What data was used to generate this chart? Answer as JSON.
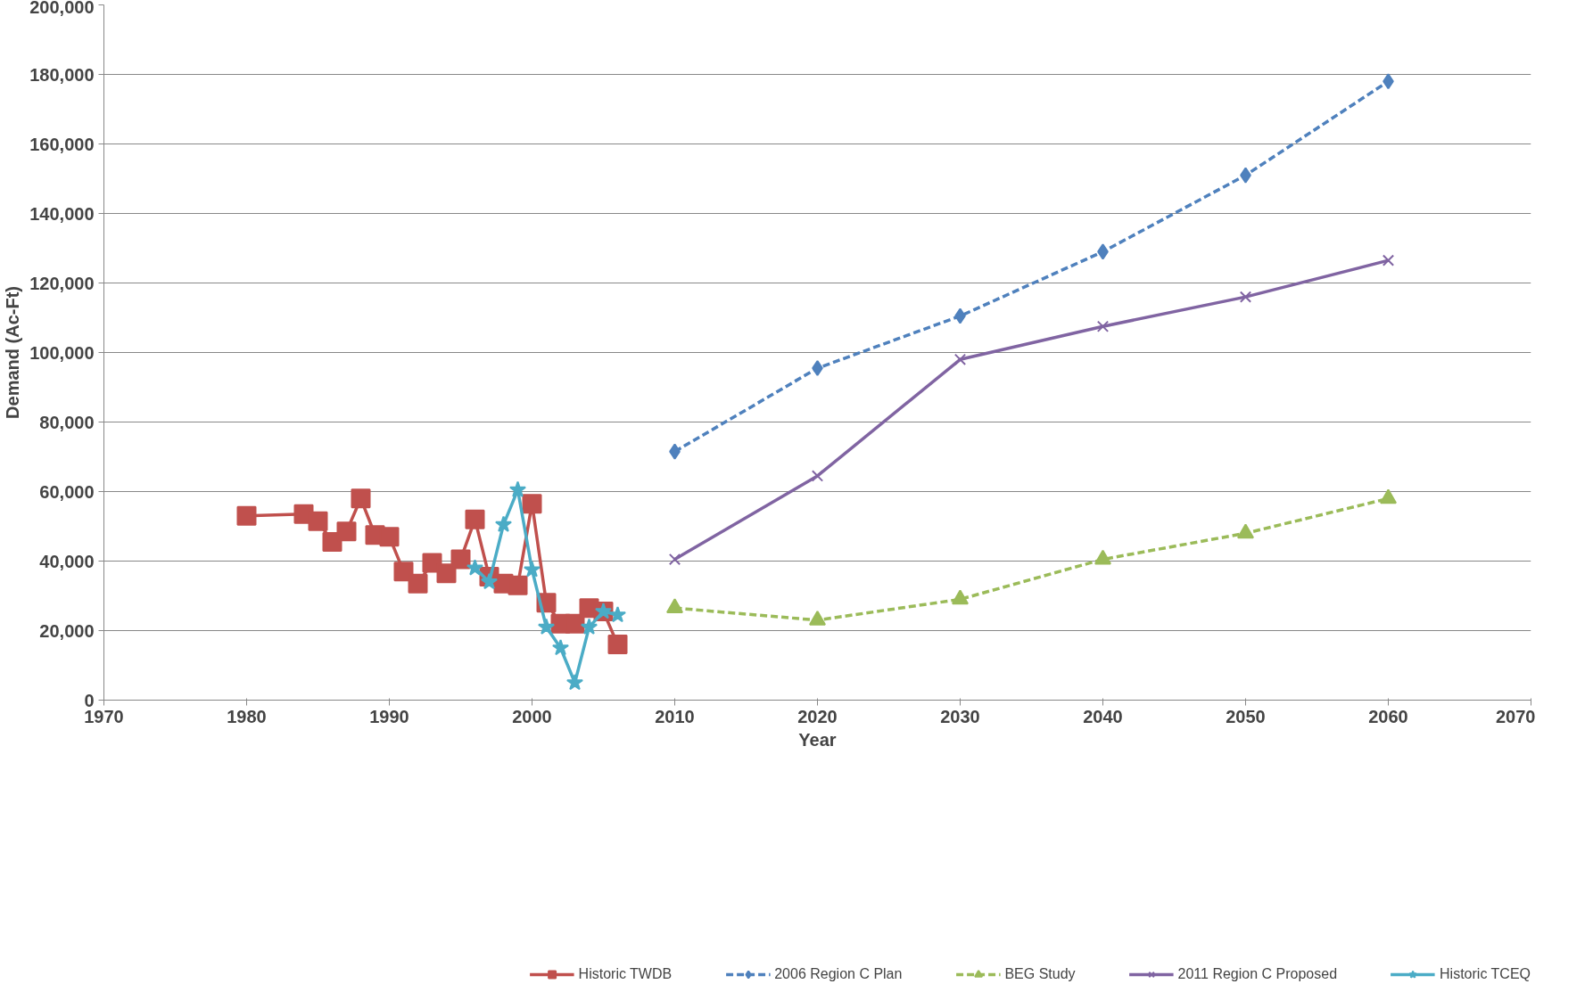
{
  "chart_data": {
    "type": "line",
    "xlabel": "Year",
    "ylabel": "Demand (Ac-Ft)",
    "xlim": [
      1970,
      2070
    ],
    "xticks": [
      1970,
      1980,
      1990,
      2000,
      2010,
      2020,
      2030,
      2040,
      2050,
      2060,
      2070
    ],
    "ylim": [
      0,
      200000
    ],
    "yticks": [
      {
        "value": 0,
        "label": "0"
      },
      {
        "value": 20000,
        "label": "20,000"
      },
      {
        "value": 40000,
        "label": "40,000"
      },
      {
        "value": 60000,
        "label": "60,000"
      },
      {
        "value": 80000,
        "label": "80,000"
      },
      {
        "value": 100000,
        "label": "100,000"
      },
      {
        "value": 120000,
        "label": "120,000"
      },
      {
        "value": 140000,
        "label": "140,000"
      },
      {
        "value": 160000,
        "label": "160,000"
      },
      {
        "value": 180000,
        "label": "180,000"
      },
      {
        "value": 200000,
        "label": "200,000"
      }
    ],
    "grid": "y",
    "legend": "bottom",
    "series": [
      {
        "name": "Historic TWDB",
        "color": "#c0504d",
        "marker": "square",
        "line_style": "solid",
        "x": [
          1980,
          1984,
          1985,
          1986,
          1987,
          1988,
          1989,
          1990,
          1991,
          1992,
          1993,
          1994,
          1995,
          1996,
          1997,
          1998,
          1999,
          2000,
          2001,
          2002,
          2003,
          2004,
          2005,
          2006
        ],
        "values": [
          53000,
          53500,
          51500,
          45500,
          48500,
          58000,
          47500,
          47000,
          37000,
          33500,
          39500,
          36500,
          40500,
          52000,
          35500,
          33500,
          33000,
          56500,
          28000,
          22000,
          22000,
          26500,
          25500,
          16000
        ]
      },
      {
        "name": "2006 Region C Plan",
        "color": "#4f81bd",
        "marker": "diamond",
        "line_style": "dashed",
        "x": [
          2010,
          2020,
          2030,
          2040,
          2050,
          2060
        ],
        "values": [
          71500,
          95500,
          110500,
          129000,
          151000,
          178000
        ]
      },
      {
        "name": "BEG Study",
        "color": "#9bbb59",
        "marker": "triangle",
        "line_style": "dashed",
        "x": [
          2010,
          2020,
          2030,
          2040,
          2050,
          2060
        ],
        "values": [
          26500,
          23000,
          29000,
          40500,
          48000,
          58000
        ]
      },
      {
        "name": "2011 Region C Proposed",
        "color": "#8064a2",
        "marker": "cross",
        "line_style": "solid",
        "x": [
          2010,
          2020,
          2030,
          2040,
          2050,
          2060
        ],
        "values": [
          40500,
          64500,
          98000,
          107500,
          116000,
          126500
        ]
      },
      {
        "name": "Historic TCEQ",
        "color": "#4bacc6",
        "marker": "star",
        "line_style": "solid",
        "x": [
          1996,
          1997,
          1998,
          1999,
          2000,
          2001,
          2002,
          2003,
          2004,
          2005,
          2006
        ],
        "values": [
          38000,
          34000,
          50500,
          60500,
          37500,
          21000,
          15000,
          5000,
          21000,
          25500,
          24500
        ]
      }
    ]
  }
}
